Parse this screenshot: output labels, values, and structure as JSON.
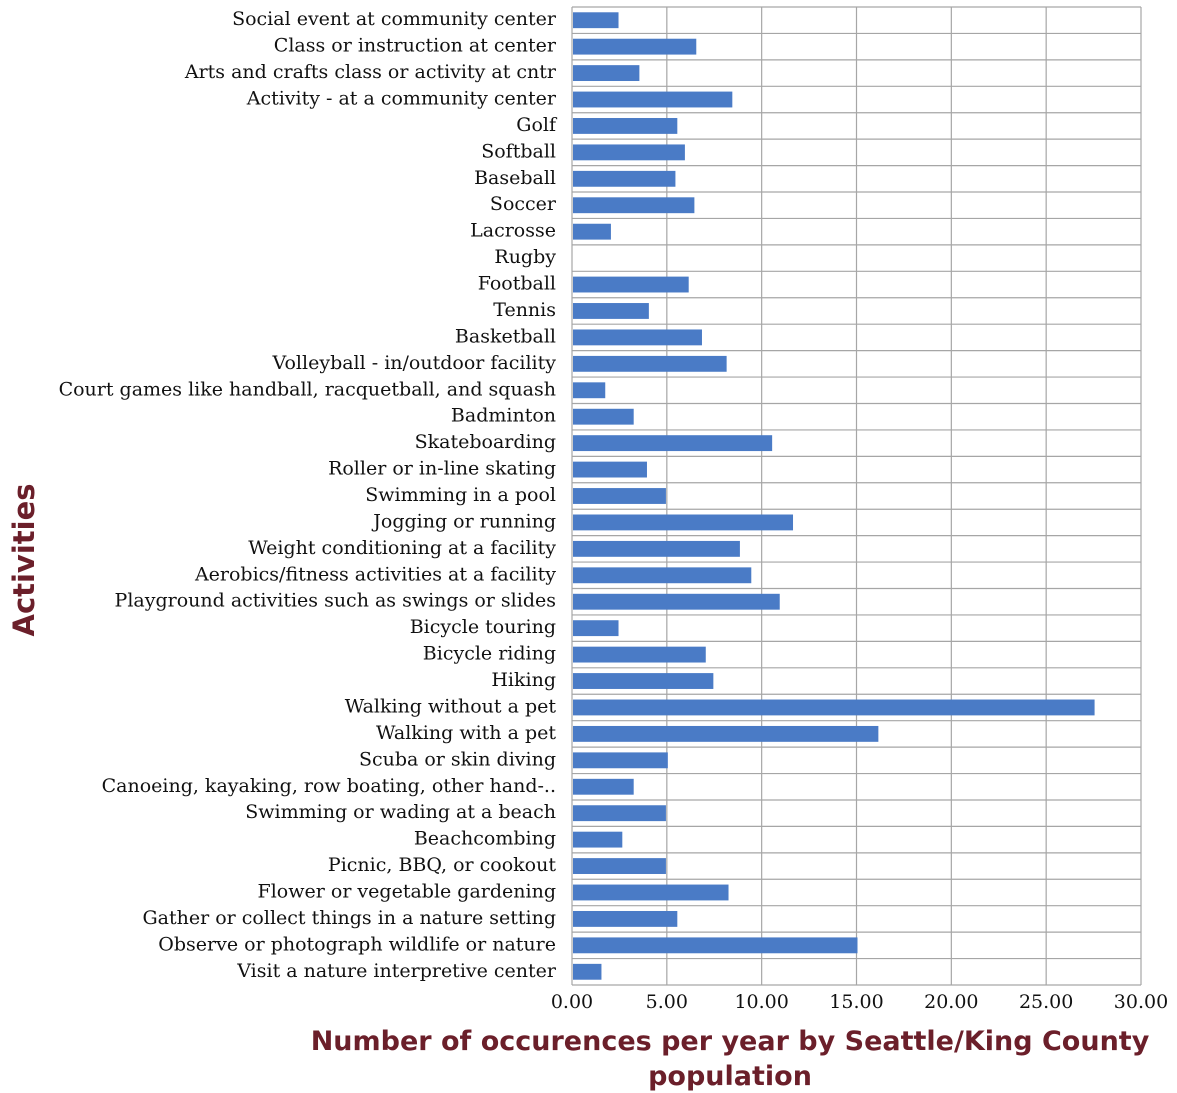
{
  "chart_data": {
    "type": "bar",
    "orientation": "horizontal",
    "title": "",
    "xlabel": "Number of occurences per year by Seattle/King County population",
    "xlabel_lines": [
      "Number of occurences per year by Seattle/King County",
      "population"
    ],
    "ylabel": "Activities",
    "xlim": [
      0,
      30
    ],
    "xticks": [
      0,
      5,
      10,
      15,
      20,
      25,
      30
    ],
    "xtick_labels": [
      "0.00",
      "5.00",
      "10.00",
      "15.00",
      "20.00",
      "25.00",
      "30.00"
    ],
    "grid": true,
    "legend": "none",
    "bar_color": "#4a7bc6",
    "grid_color": "#a6a6a6",
    "title_color": "#6b1f2a",
    "categories": [
      "Social event at community center",
      "Class or instruction at center",
      "Arts and crafts class or activity at cntr",
      "Activity - at a community center",
      "Golf",
      "Softball",
      "Baseball",
      "Soccer",
      "Lacrosse",
      "Rugby",
      "Football",
      "Tennis",
      "Basketball",
      "Volleyball - in/outdoor facility",
      "Court games like handball, racquetball, and squash",
      "Badminton",
      "Skateboarding",
      "Roller or in-line skating",
      "Swimming in a pool",
      "Jogging or running",
      "Weight conditioning at a facility",
      "Aerobics/fitness activities at a facility",
      "Playground activities such as swings or slides",
      "Bicycle touring",
      "Bicycle riding",
      "Hiking",
      "Walking without a pet",
      "Walking with a pet",
      "Scuba or skin diving",
      "Canoeing, kayaking, row boating, other hand-..",
      "Swimming or wading at a beach",
      "Beachcombing",
      "Picnic, BBQ, or cookout",
      "Flower or vegetable gardening",
      "Gather or collect things in a nature setting",
      "Observe or photograph wildlife or nature",
      "Visit a nature interpretive center"
    ],
    "values": [
      2.4,
      6.5,
      3.5,
      8.4,
      5.5,
      5.9,
      5.4,
      6.4,
      2.0,
      0,
      6.1,
      4.0,
      6.8,
      8.1,
      1.7,
      3.2,
      10.5,
      3.9,
      4.9,
      11.6,
      8.8,
      9.4,
      10.9,
      2.4,
      7.0,
      7.4,
      27.5,
      16.1,
      5.0,
      3.2,
      4.9,
      2.6,
      4.9,
      8.2,
      5.5,
      15.0,
      1.5
    ]
  }
}
